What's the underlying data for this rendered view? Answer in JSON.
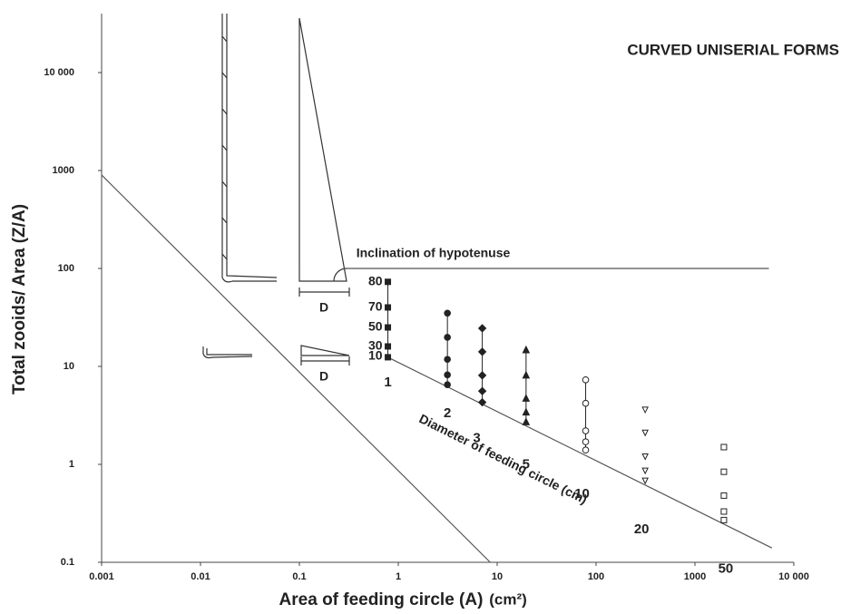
{
  "chart_data": {
    "type": "scatter",
    "title": "CURVED UNISERIAL FORMS",
    "x_label": "Area of feeding circle (A)",
    "x_unit": "(cm²)",
    "y_label": "Total zooids/ Area (Z/A)",
    "log_x": true,
    "log_y": true,
    "xlim": [
      0.001,
      10000
    ],
    "xticks": [
      0.001,
      0.01,
      0.1,
      1,
      10,
      100,
      1000,
      {
        "value": 10000,
        "label": "10 000"
      }
    ],
    "ylim": [
      0.1,
      40000
    ],
    "yticks": [
      0.1,
      1,
      10,
      100,
      1000,
      {
        "value": 10000,
        "label": "10 000"
      }
    ],
    "color": "#222222",
    "inclination_labels": [
      80,
      70,
      50,
      30,
      10
    ],
    "series": [
      {
        "name": "1",
        "marker": "filled-square",
        "x": [
          0.785,
          0.785,
          0.785,
          0.785,
          0.785
        ],
        "values": [
          12.4,
          16,
          25,
          40,
          73
        ]
      },
      {
        "name": "2",
        "marker": "filled-circle",
        "x": [
          3.14,
          3.14,
          3.14,
          3.14,
          3.14
        ],
        "values": [
          6.5,
          8.2,
          11.8,
          19.8,
          35
        ]
      },
      {
        "name": "3",
        "marker": "filled-diamond",
        "x": [
          7.07,
          7.07,
          7.07,
          7.07,
          7.07
        ],
        "values": [
          4.3,
          5.6,
          8.1,
          14.1,
          24.5
        ]
      },
      {
        "name": "5",
        "marker": "filled-triangle",
        "x": [
          19.6,
          19.6,
          19.6,
          19.6,
          19.6
        ],
        "values": [
          2.7,
          3.4,
          4.7,
          8.1,
          14.7
        ]
      },
      {
        "name": "10",
        "marker": "open-circle",
        "x": [
          78.5,
          78.5,
          78.5,
          78.5,
          78.5
        ],
        "values": [
          1.4,
          1.7,
          2.2,
          4.2,
          7.3
        ]
      },
      {
        "name": "20",
        "marker": "open-triangle",
        "x": [
          314,
          314,
          314,
          314,
          314
        ],
        "values": [
          0.68,
          0.86,
          1.2,
          2.1,
          3.6
        ]
      },
      {
        "name": "50",
        "marker": "open-square",
        "x": [
          1963,
          1963,
          1963,
          1963,
          1963
        ],
        "values": [
          0.27,
          0.33,
          0.48,
          0.84,
          1.5
        ]
      }
    ],
    "lines": [
      {
        "x": [
          0.001,
          8.5
        ],
        "y": [
          900,
          0.1
        ]
      },
      {
        "x": [
          0.785,
          6000
        ],
        "y": [
          12.4,
          0.14
        ],
        "label": "Diameter of feeding circle (cm)"
      },
      {
        "x": [
          0.28,
          5600
        ],
        "y": [
          100,
          100
        ],
        "label": "Inclination of hypotenuse"
      }
    ],
    "scale_labels": [
      "D",
      "D"
    ]
  }
}
